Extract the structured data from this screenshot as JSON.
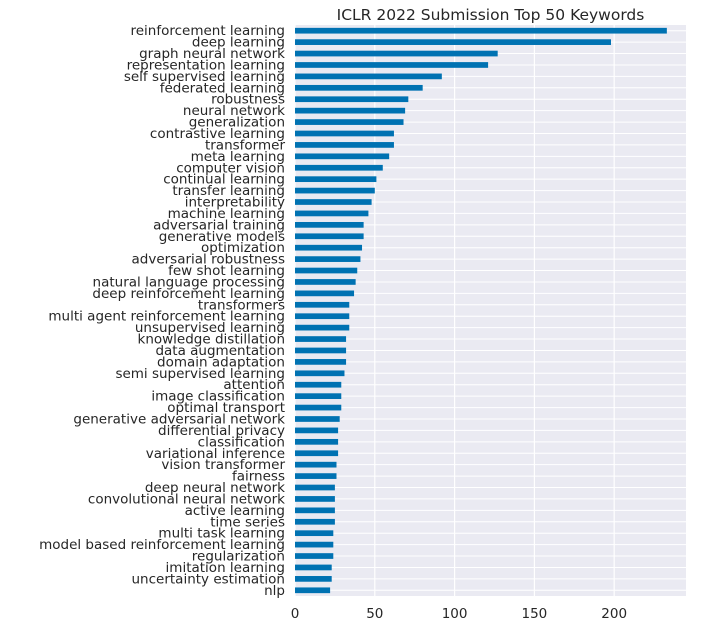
{
  "chart_data": {
    "type": "bar",
    "orientation": "horizontal",
    "title": "ICLR 2022 Submission Top 50 Keywords",
    "xlabel": "",
    "ylabel": "",
    "xlim": [
      0,
      245
    ],
    "xticks": [
      0,
      50,
      100,
      150,
      200
    ],
    "grid": true,
    "legend": "none",
    "colors": {
      "bar": "#0072b2",
      "plot_bg": "#eaeaf2",
      "grid": "#ffffff"
    },
    "categories": [
      "reinforcement learning",
      "deep learning",
      "graph neural network",
      "representation learning",
      "self supervised learning",
      "federated learning",
      "robustness",
      "neural network",
      "generalization",
      "contrastive learning",
      "transformer",
      "meta learning",
      "computer vision",
      "continual learning",
      "transfer learning",
      "interpretability",
      "machine learning",
      "adversarial training",
      "generative models",
      "optimization",
      "adversarial robustness",
      "few shot learning",
      "natural language processing",
      "deep reinforcement learning",
      "transformers",
      "multi agent reinforcement learning",
      "unsupervised learning",
      "knowledge distillation",
      "data augmentation",
      "domain adaptation",
      "semi supervised learning",
      "attention",
      "image classification",
      "optimal transport",
      "generative adversarial network",
      "differential privacy",
      "classification",
      "variational inference",
      "vision transformer",
      "fairness",
      "deep neural network",
      "convolutional neural network",
      "active learning",
      "time series",
      "multi task learning",
      "model based reinforcement learning",
      "regularization",
      "imitation learning",
      "uncertainty estimation",
      "nlp"
    ],
    "values": [
      233,
      198,
      127,
      121,
      92,
      80,
      71,
      69,
      68,
      62,
      62,
      59,
      55,
      51,
      50,
      48,
      46,
      43,
      43,
      42,
      41,
      39,
      38,
      37,
      34,
      34,
      34,
      32,
      32,
      32,
      31,
      29,
      29,
      29,
      28,
      27,
      27,
      27,
      26,
      26,
      25,
      25,
      25,
      25,
      24,
      24,
      24,
      23,
      23,
      22
    ]
  }
}
